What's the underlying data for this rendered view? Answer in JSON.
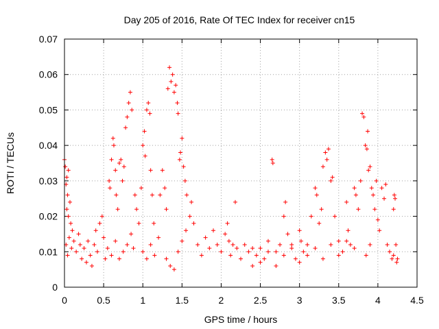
{
  "chart_data": {
    "type": "scatter",
    "title": "Day 205 of 2016, Rate Of TEC Index for receiver cn15",
    "xlabel": "GPS time / hours",
    "ylabel": "ROTI / TECUs",
    "xlim": [
      0,
      4.5
    ],
    "ylim": [
      0,
      0.07
    ],
    "grid": true,
    "marker": "+",
    "color": "#ff0000",
    "x_ticks": [
      0,
      0.5,
      1,
      1.5,
      2,
      2.5,
      3,
      3.5,
      4,
      4.5
    ],
    "x_tick_labels": [
      "0",
      "0.5",
      "1",
      "1.5",
      "2",
      "2.5",
      "3",
      "3.5",
      "4",
      "4.5"
    ],
    "y_ticks": [
      0,
      0.01,
      0.02,
      0.03,
      0.04,
      0.05,
      0.06,
      0.07
    ],
    "y_tick_labels": [
      "0",
      "0.01",
      "0.02",
      "0.03",
      "0.04",
      "0.05",
      "0.06",
      "0.07"
    ],
    "series": [
      {
        "name": "ROTI",
        "points": [
          [
            0.0,
            0.036
          ],
          [
            0.01,
            0.034
          ],
          [
            0.02,
            0.029
          ],
          [
            0.03,
            0.031
          ],
          [
            0.04,
            0.026
          ],
          [
            0.05,
            0.033
          ],
          [
            0.03,
            0.022
          ],
          [
            0.05,
            0.02
          ],
          [
            0.07,
            0.024
          ],
          [
            0.08,
            0.018
          ],
          [
            0.02,
            0.012
          ],
          [
            0.04,
            0.009
          ],
          [
            0.06,
            0.014
          ],
          [
            0.09,
            0.011
          ],
          [
            0.1,
            0.016
          ],
          [
            0.12,
            0.013
          ],
          [
            0.15,
            0.01
          ],
          [
            0.18,
            0.015
          ],
          [
            0.2,
            0.012
          ],
          [
            0.22,
            0.008
          ],
          [
            0.25,
            0.011
          ],
          [
            0.28,
            0.007
          ],
          [
            0.3,
            0.013
          ],
          [
            0.33,
            0.009
          ],
          [
            0.35,
            0.006
          ],
          [
            0.38,
            0.012
          ],
          [
            0.4,
            0.016
          ],
          [
            0.42,
            0.01
          ],
          [
            0.45,
            0.018
          ],
          [
            0.48,
            0.02
          ],
          [
            0.5,
            0.014
          ],
          [
            0.52,
            0.008
          ],
          [
            0.55,
            0.011
          ],
          [
            0.57,
            0.03
          ],
          [
            0.58,
            0.028
          ],
          [
            0.6,
            0.036
          ],
          [
            0.62,
            0.042
          ],
          [
            0.63,
            0.04
          ],
          [
            0.65,
            0.033
          ],
          [
            0.66,
            0.026
          ],
          [
            0.68,
            0.022
          ],
          [
            0.7,
            0.035
          ],
          [
            0.72,
            0.036
          ],
          [
            0.74,
            0.03
          ],
          [
            0.76,
            0.034
          ],
          [
            0.78,
            0.045
          ],
          [
            0.8,
            0.048
          ],
          [
            0.82,
            0.052
          ],
          [
            0.84,
            0.055
          ],
          [
            0.86,
            0.05
          ],
          [
            0.8,
            0.012
          ],
          [
            0.75,
            0.01
          ],
          [
            0.7,
            0.008
          ],
          [
            0.65,
            0.013
          ],
          [
            0.6,
            0.009
          ],
          [
            0.85,
            0.015
          ],
          [
            0.88,
            0.011
          ],
          [
            0.9,
            0.026
          ],
          [
            0.92,
            0.022
          ],
          [
            0.95,
            0.018
          ],
          [
            0.98,
            0.028
          ],
          [
            1.0,
            0.04
          ],
          [
            1.02,
            0.044
          ],
          [
            1.03,
            0.037
          ],
          [
            1.05,
            0.05
          ],
          [
            1.07,
            0.052
          ],
          [
            1.09,
            0.049
          ],
          [
            1.1,
            0.033
          ],
          [
            1.12,
            0.026
          ],
          [
            1.14,
            0.018
          ],
          [
            1.0,
            0.01
          ],
          [
            1.05,
            0.008
          ],
          [
            1.1,
            0.012
          ],
          [
            1.15,
            0.009
          ],
          [
            1.2,
            0.014
          ],
          [
            1.22,
            0.026
          ],
          [
            1.25,
            0.033
          ],
          [
            1.28,
            0.028
          ],
          [
            1.3,
            0.022
          ],
          [
            1.32,
            0.056
          ],
          [
            1.34,
            0.062
          ],
          [
            1.36,
            0.058
          ],
          [
            1.38,
            0.06
          ],
          [
            1.4,
            0.055
          ],
          [
            1.42,
            0.057
          ],
          [
            1.44,
            0.052
          ],
          [
            1.45,
            0.049
          ],
          [
            1.47,
            0.036
          ],
          [
            1.48,
            0.038
          ],
          [
            1.5,
            0.042
          ],
          [
            1.52,
            0.034
          ],
          [
            1.54,
            0.03
          ],
          [
            1.56,
            0.026
          ],
          [
            1.35,
            0.006
          ],
          [
            1.4,
            0.005
          ],
          [
            1.3,
            0.008
          ],
          [
            1.45,
            0.01
          ],
          [
            1.5,
            0.013
          ],
          [
            1.55,
            0.016
          ],
          [
            1.6,
            0.02
          ],
          [
            1.62,
            0.024
          ],
          [
            1.65,
            0.018
          ],
          [
            1.7,
            0.012
          ],
          [
            1.75,
            0.009
          ],
          [
            1.8,
            0.014
          ],
          [
            1.85,
            0.011
          ],
          [
            1.9,
            0.016
          ],
          [
            1.95,
            0.012
          ],
          [
            2.0,
            0.01
          ],
          [
            2.05,
            0.015
          ],
          [
            2.08,
            0.018
          ],
          [
            2.1,
            0.013
          ],
          [
            2.12,
            0.009
          ],
          [
            2.15,
            0.012
          ],
          [
            2.18,
            0.024
          ],
          [
            2.2,
            0.011
          ],
          [
            2.25,
            0.008
          ],
          [
            2.3,
            0.012
          ],
          [
            2.35,
            0.01
          ],
          [
            2.4,
            0.006
          ],
          [
            2.45,
            0.009
          ],
          [
            2.5,
            0.011
          ],
          [
            2.55,
            0.008
          ],
          [
            2.6,
            0.013
          ],
          [
            2.65,
            0.036
          ],
          [
            2.66,
            0.035
          ],
          [
            2.7,
            0.01
          ],
          [
            2.75,
            0.012
          ],
          [
            2.8,
            0.02
          ],
          [
            2.82,
            0.024
          ],
          [
            2.85,
            0.015
          ],
          [
            2.9,
            0.011
          ],
          [
            2.95,
            0.008
          ],
          [
            3.0,
            0.016
          ],
          [
            3.02,
            0.013
          ],
          [
            3.05,
            0.01
          ],
          [
            3.1,
            0.012
          ],
          [
            3.15,
            0.02
          ],
          [
            3.2,
            0.028
          ],
          [
            3.22,
            0.026
          ],
          [
            3.25,
            0.018
          ],
          [
            3.28,
            0.022
          ],
          [
            3.3,
            0.034
          ],
          [
            3.33,
            0.038
          ],
          [
            3.35,
            0.036
          ],
          [
            3.37,
            0.039
          ],
          [
            3.4,
            0.03
          ],
          [
            3.42,
            0.031
          ],
          [
            3.45,
            0.02
          ],
          [
            3.5,
            0.013
          ],
          [
            3.55,
            0.01
          ],
          [
            3.6,
            0.024
          ],
          [
            3.62,
            0.016
          ],
          [
            3.65,
            0.012
          ],
          [
            3.7,
            0.028
          ],
          [
            3.72,
            0.026
          ],
          [
            3.75,
            0.022
          ],
          [
            3.78,
            0.03
          ],
          [
            3.8,
            0.049
          ],
          [
            3.82,
            0.048
          ],
          [
            3.84,
            0.04
          ],
          [
            3.86,
            0.039
          ],
          [
            3.87,
            0.044
          ],
          [
            3.88,
            0.033
          ],
          [
            3.9,
            0.034
          ],
          [
            3.92,
            0.028
          ],
          [
            3.94,
            0.026
          ],
          [
            3.96,
            0.022
          ],
          [
            3.98,
            0.03
          ],
          [
            4.0,
            0.019
          ],
          [
            4.02,
            0.016
          ],
          [
            4.05,
            0.028
          ],
          [
            4.08,
            0.025
          ],
          [
            4.1,
            0.029
          ],
          [
            4.12,
            0.012
          ],
          [
            4.15,
            0.01
          ],
          [
            4.18,
            0.008
          ],
          [
            4.2,
            0.022
          ],
          [
            4.21,
            0.026
          ],
          [
            4.22,
            0.025
          ],
          [
            4.24,
            0.007
          ],
          [
            4.25,
            0.008
          ],
          [
            4.23,
            0.012
          ],
          [
            4.2,
            0.009
          ],
          [
            3.9,
            0.012
          ],
          [
            3.85,
            0.009
          ],
          [
            3.7,
            0.011
          ],
          [
            3.6,
            0.013
          ],
          [
            3.5,
            0.009
          ],
          [
            3.4,
            0.012
          ],
          [
            3.3,
            0.008
          ],
          [
            3.2,
            0.011
          ],
          [
            3.1,
            0.009
          ],
          [
            3.0,
            0.007
          ],
          [
            2.9,
            0.012
          ],
          [
            2.8,
            0.009
          ],
          [
            2.7,
            0.006
          ],
          [
            2.6,
            0.01
          ],
          [
            2.5,
            0.007
          ],
          [
            2.4,
            0.011
          ]
        ]
      }
    ]
  }
}
